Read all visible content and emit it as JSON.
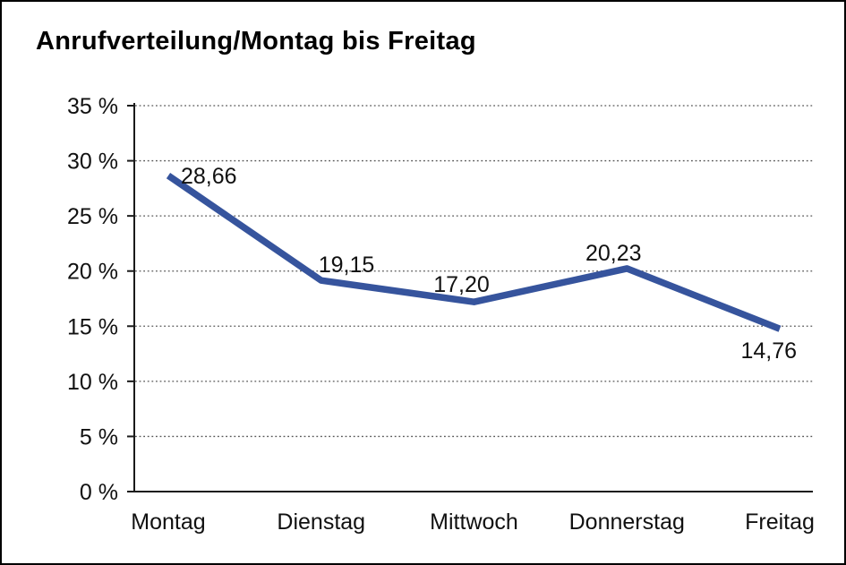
{
  "title": "Anrufverteilung/Montag bis Freitag",
  "chart_data": {
    "type": "line",
    "title": "Anrufverteilung/Montag bis Freitag",
    "categories": [
      "Montag",
      "Dienstag",
      "Mittwoch",
      "Donnerstag",
      "Freitag"
    ],
    "values": [
      28.66,
      19.15,
      17.2,
      20.23,
      14.76
    ],
    "data_labels": [
      "28,66",
      "19,15",
      "17,20",
      "20,23",
      "14,76"
    ],
    "series_name": "Anrufverteilung",
    "xlabel": "",
    "ylabel": "",
    "ylim": [
      0,
      35
    ],
    "y_tick_step": 5,
    "y_ticks": [
      0,
      5,
      10,
      15,
      20,
      25,
      30,
      35
    ],
    "y_tick_labels": [
      "0 %",
      "5 %",
      "10 %",
      "15 %",
      "20 %",
      "25 %",
      "30 %",
      "35 %"
    ],
    "grid": "horizontal-dotted",
    "legend": "none",
    "line_color": "#36549D",
    "axis_color": "#1a1a1a",
    "grid_color": "#555555",
    "label_color": "#111111"
  }
}
